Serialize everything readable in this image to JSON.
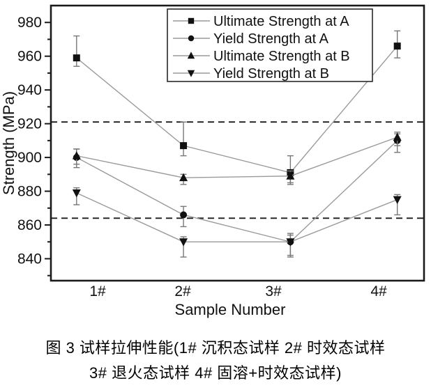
{
  "figure": {
    "caption_line1": "图 3  试样拉伸性能(1# 沉积态试样 2# 时效态试样",
    "caption_line2": "3# 退火态试样 4# 固溶+时效态试样)"
  },
  "chart_data": {
    "type": "line",
    "title": "",
    "xlabel": "Sample Number",
    "ylabel": "Strength (MPa)",
    "categories": [
      "1#",
      "2#",
      "3#",
      "4#"
    ],
    "x_positions": [
      1,
      2,
      3,
      4
    ],
    "xlim": [
      0.76,
      4.25
    ],
    "ylim": [
      827,
      990
    ],
    "yticks": [
      840,
      860,
      880,
      900,
      920,
      940,
      960,
      980
    ],
    "minor_tick_step": 10,
    "grid": false,
    "legend_position": "top-right",
    "series": [
      {
        "name": "Ultimate Strength at A",
        "marker": "square",
        "values": [
          959,
          907,
          891,
          966
        ],
        "err_up": [
          13,
          14,
          10,
          9
        ],
        "err_down": [
          5,
          6,
          7,
          7
        ]
      },
      {
        "name": "Yield Strength at A",
        "marker": "circle",
        "values": [
          900,
          866,
          850,
          910
        ],
        "err_up": [
          5,
          5,
          5,
          4
        ],
        "err_down": [
          6,
          7,
          8,
          7
        ]
      },
      {
        "name": "Ultimate Strength at B",
        "marker": "triangle-up",
        "values": [
          901,
          888,
          889,
          912
        ],
        "err_up": [
          4,
          2,
          3,
          3
        ],
        "err_down": [
          5,
          4,
          4,
          5
        ]
      },
      {
        "name": "Yield Strength at B",
        "marker": "triangle-down",
        "values": [
          879,
          850,
          850,
          875
        ],
        "err_up": [
          3,
          3,
          4,
          3
        ],
        "err_down": [
          7,
          9,
          9,
          9
        ]
      }
    ],
    "reference_lines": [
      {
        "value": 921,
        "style": "dashed"
      },
      {
        "value": 864,
        "style": "dashed"
      }
    ],
    "colors": {
      "marker": "#111111",
      "line": "#9a9a9a",
      "error_bar": "#777777",
      "axis": "#1a1a1a",
      "reference_line": "#1a1a1a",
      "text": "#111111",
      "background": "#ffffff"
    }
  }
}
